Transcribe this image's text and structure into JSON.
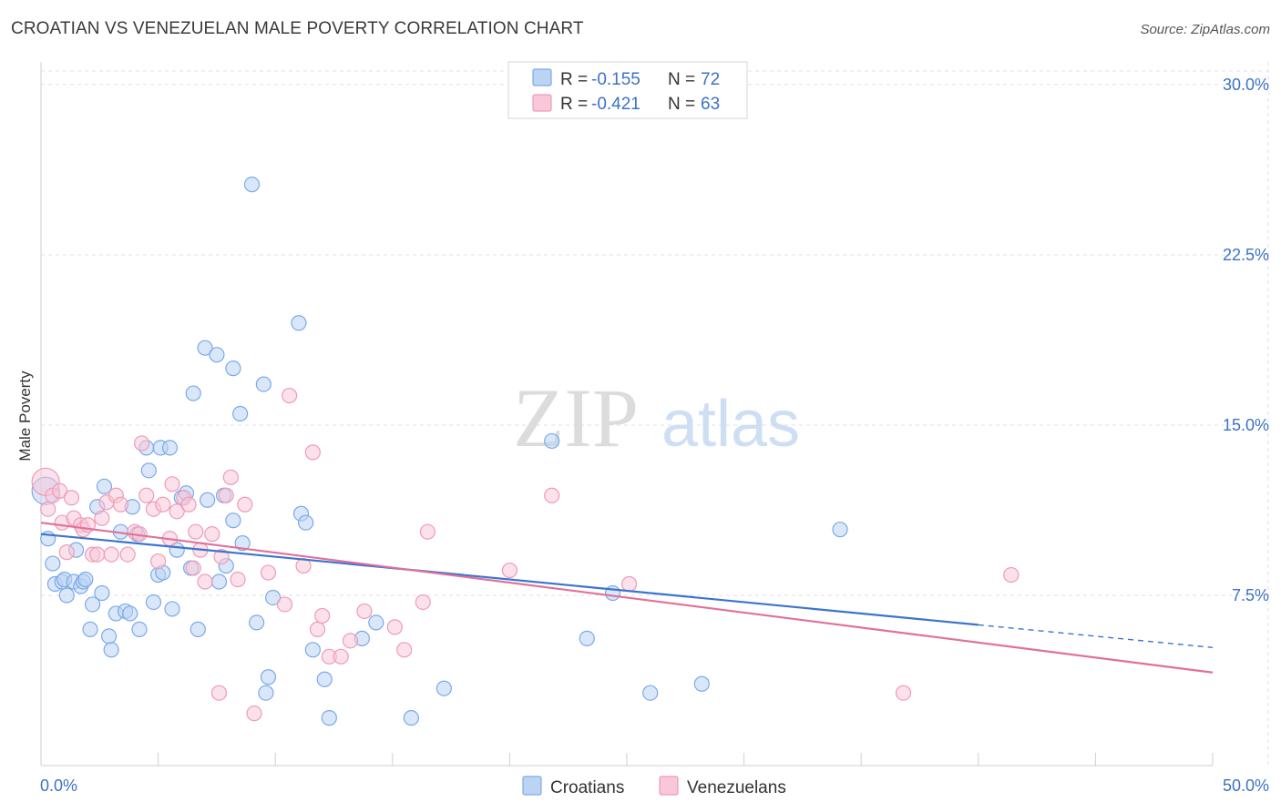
{
  "title": "CROATIAN VS VENEZUELAN MALE POVERTY CORRELATION CHART",
  "source": "Source: ZipAtlas.com",
  "watermark": {
    "zip": "ZIP",
    "atlas": "atlas"
  },
  "colors": {
    "croatians": "#7aaae8",
    "croatians_fill": "#bcd4f4",
    "croatians_line": "#3a74d0",
    "venezuelans": "#f09ab8",
    "venezuelans_fill": "#f8c8d8",
    "venezuelans_line": "#e0709a",
    "tick": "#3c72c6"
  },
  "legend": {
    "rows": [
      {
        "r_label": "R = ",
        "r_value": "-0.155",
        "n_label": "N = ",
        "n_value": "72"
      },
      {
        "r_label": "R = ",
        "r_value": "-0.421",
        "n_label": "N = ",
        "n_value": "63"
      }
    ]
  },
  "chart_data": {
    "type": "scatter",
    "title": "CROATIAN VS VENEZUELAN MALE POVERTY CORRELATION CHART",
    "xlabel": "",
    "ylabel": "Male Poverty",
    "xlim": [
      0,
      50
    ],
    "ylim": [
      0,
      31
    ],
    "x_tick_labels": [
      "0.0%",
      "50.0%"
    ],
    "y_ticks": [
      7.5,
      15.0,
      22.5,
      30.0
    ],
    "y_tick_labels": [
      "7.5%",
      "15.0%",
      "22.5%",
      "30.0%"
    ],
    "grid": true,
    "legend_position": "top-center",
    "series": [
      {
        "name": "Croatians",
        "r": -0.155,
        "n": 72,
        "trend": {
          "x0": 0,
          "y0": 10.2,
          "x1": 40,
          "y1": 6.2,
          "dashed_to_x": 50,
          "dashed_to_y": 5.2
        },
        "points": [
          [
            0.2,
            12.1
          ],
          [
            0.3,
            10.0
          ],
          [
            0.5,
            8.9
          ],
          [
            0.6,
            8.0
          ],
          [
            0.9,
            8.1
          ],
          [
            1.0,
            8.2
          ],
          [
            1.1,
            7.5
          ],
          [
            1.4,
            8.1
          ],
          [
            1.5,
            9.5
          ],
          [
            1.7,
            7.9
          ],
          [
            1.8,
            8.1
          ],
          [
            1.9,
            8.2
          ],
          [
            2.1,
            6.0
          ],
          [
            2.2,
            7.1
          ],
          [
            2.4,
            11.4
          ],
          [
            2.6,
            7.6
          ],
          [
            2.7,
            12.3
          ],
          [
            2.9,
            5.7
          ],
          [
            3.0,
            5.1
          ],
          [
            3.2,
            6.7
          ],
          [
            3.4,
            10.3
          ],
          [
            3.6,
            6.8
          ],
          [
            3.8,
            6.7
          ],
          [
            3.9,
            11.4
          ],
          [
            4.1,
            10.2
          ],
          [
            4.2,
            6.0
          ],
          [
            4.5,
            14.0
          ],
          [
            4.6,
            13.0
          ],
          [
            4.8,
            7.2
          ],
          [
            5.0,
            8.4
          ],
          [
            5.1,
            14.0
          ],
          [
            5.2,
            8.5
          ],
          [
            5.5,
            14.0
          ],
          [
            5.6,
            6.9
          ],
          [
            5.8,
            9.5
          ],
          [
            6.0,
            11.8
          ],
          [
            6.2,
            12.0
          ],
          [
            6.4,
            8.7
          ],
          [
            6.5,
            16.4
          ],
          [
            6.7,
            6.0
          ],
          [
            7.0,
            18.4
          ],
          [
            7.1,
            11.7
          ],
          [
            7.5,
            18.1
          ],
          [
            7.6,
            8.1
          ],
          [
            7.8,
            11.9
          ],
          [
            7.9,
            8.8
          ],
          [
            8.2,
            10.8
          ],
          [
            8.2,
            17.5
          ],
          [
            8.5,
            15.5
          ],
          [
            8.6,
            9.8
          ],
          [
            9.0,
            25.6
          ],
          [
            9.2,
            6.3
          ],
          [
            9.5,
            16.8
          ],
          [
            9.6,
            3.2
          ],
          [
            9.7,
            3.9
          ],
          [
            9.9,
            7.4
          ],
          [
            11.0,
            19.5
          ],
          [
            11.1,
            11.1
          ],
          [
            11.3,
            10.7
          ],
          [
            11.6,
            5.1
          ],
          [
            12.1,
            3.8
          ],
          [
            12.3,
            2.1
          ],
          [
            13.7,
            5.6
          ],
          [
            14.3,
            6.3
          ],
          [
            15.8,
            2.1
          ],
          [
            17.2,
            3.4
          ],
          [
            21.8,
            14.3
          ],
          [
            23.3,
            5.6
          ],
          [
            24.4,
            7.6
          ],
          [
            26.0,
            3.2
          ],
          [
            28.2,
            3.6
          ],
          [
            34.1,
            10.4
          ]
        ]
      },
      {
        "name": "Venezuelans",
        "r": -0.421,
        "n": 63,
        "trend": {
          "x0": 0,
          "y0": 10.7,
          "x1": 50,
          "y1": 4.1
        },
        "points": [
          [
            0.2,
            12.5
          ],
          [
            0.3,
            11.3
          ],
          [
            0.5,
            11.9
          ],
          [
            0.8,
            12.1
          ],
          [
            0.9,
            10.7
          ],
          [
            1.1,
            9.4
          ],
          [
            1.3,
            11.8
          ],
          [
            1.4,
            10.9
          ],
          [
            1.7,
            10.6
          ],
          [
            1.8,
            10.4
          ],
          [
            2.0,
            10.6
          ],
          [
            2.2,
            9.3
          ],
          [
            2.4,
            9.3
          ],
          [
            2.6,
            10.9
          ],
          [
            2.8,
            11.6
          ],
          [
            3.0,
            9.3
          ],
          [
            3.2,
            11.9
          ],
          [
            3.4,
            11.5
          ],
          [
            3.7,
            9.3
          ],
          [
            4.0,
            10.3
          ],
          [
            4.2,
            10.2
          ],
          [
            4.3,
            14.2
          ],
          [
            4.5,
            11.9
          ],
          [
            4.8,
            11.3
          ],
          [
            5.0,
            9.0
          ],
          [
            5.2,
            11.5
          ],
          [
            5.5,
            10.0
          ],
          [
            5.6,
            12.4
          ],
          [
            5.8,
            11.2
          ],
          [
            6.1,
            11.8
          ],
          [
            6.3,
            11.5
          ],
          [
            6.5,
            8.7
          ],
          [
            6.6,
            10.3
          ],
          [
            6.8,
            9.5
          ],
          [
            7.0,
            8.1
          ],
          [
            7.3,
            10.2
          ],
          [
            7.6,
            3.2
          ],
          [
            7.7,
            9.2
          ],
          [
            7.9,
            11.9
          ],
          [
            8.1,
            12.7
          ],
          [
            8.4,
            8.2
          ],
          [
            8.7,
            11.5
          ],
          [
            9.1,
            2.3
          ],
          [
            9.7,
            8.5
          ],
          [
            10.4,
            7.1
          ],
          [
            10.6,
            16.3
          ],
          [
            11.2,
            8.8
          ],
          [
            11.6,
            13.8
          ],
          [
            11.8,
            6.0
          ],
          [
            12.0,
            6.6
          ],
          [
            12.3,
            4.8
          ],
          [
            12.8,
            4.8
          ],
          [
            13.2,
            5.5
          ],
          [
            13.8,
            6.8
          ],
          [
            15.1,
            6.1
          ],
          [
            15.5,
            5.1
          ],
          [
            16.3,
            7.2
          ],
          [
            16.5,
            10.3
          ],
          [
            20.0,
            8.6
          ],
          [
            21.8,
            11.9
          ],
          [
            25.1,
            8.0
          ],
          [
            36.8,
            3.2
          ],
          [
            41.4,
            8.4
          ]
        ]
      }
    ]
  },
  "bottom_legend": [
    {
      "label": "Croatians"
    },
    {
      "label": "Venezuelans"
    }
  ]
}
